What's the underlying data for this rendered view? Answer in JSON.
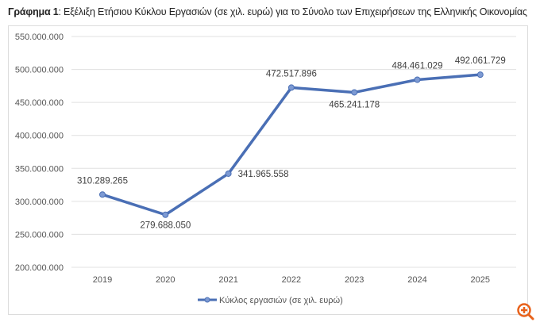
{
  "title": {
    "prefix": "Γράφημα 1",
    "text": ": Εξέλιξη Ετήσιου Κύκλου Εργασιών (σε χιλ. ευρώ) για το Σύνολο των Επιχειρήσεων της Ελληνικής Οικονομίας"
  },
  "chart_data": {
    "type": "line",
    "categories": [
      "2019",
      "2020",
      "2021",
      "2022",
      "2023",
      "2024",
      "2025"
    ],
    "series": [
      {
        "name": "Κύκλος εργασιών (σε χιλ. ευρώ)",
        "values": [
          310289265,
          279688050,
          341965558,
          472517896,
          465241178,
          484461029,
          492061729
        ]
      }
    ],
    "data_labels": [
      "310.289.265",
      "279.688.050",
      "341.965.558",
      "472.517.896",
      "465.241.178",
      "484.461.029",
      "492.061.729"
    ],
    "yticks": [
      "200.000.000",
      "250.000.000",
      "300.000.000",
      "350.000.000",
      "400.000.000",
      "450.000.000",
      "500.000.000",
      "550.000.000"
    ],
    "ylim": [
      200000000,
      550000000
    ],
    "grid": true,
    "legend": "bottom",
    "color": "#4a6fb5"
  },
  "icons": {
    "zoom": "zoom-in-icon",
    "zoom_color": "#e8611a"
  }
}
